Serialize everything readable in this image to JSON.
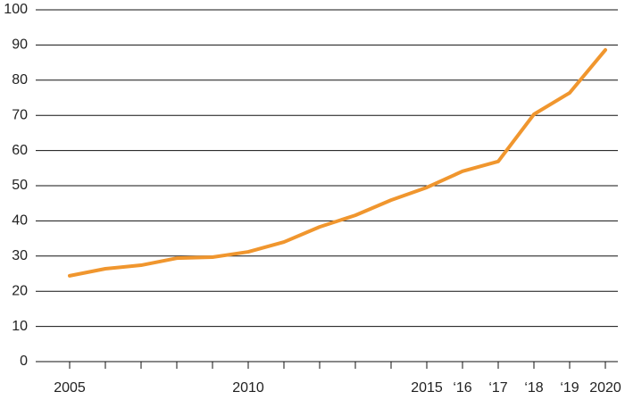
{
  "chart_data": {
    "type": "line",
    "categories": [
      "2005",
      null,
      null,
      null,
      null,
      "2010",
      null,
      null,
      null,
      null,
      "2015",
      "‘16",
      "‘17",
      "‘18",
      "‘19",
      "2020"
    ],
    "values": [
      24.4,
      26.4,
      27.4,
      29.4,
      29.7,
      31.2,
      34,
      38.3,
      41.6,
      45.9,
      49.5,
      54.1,
      56.9,
      70.3,
      76.4,
      88.6
    ],
    "color": "#f0962e",
    "ylim": [
      0,
      100
    ],
    "yticks": [
      0,
      10,
      20,
      30,
      40,
      50,
      60,
      70,
      80,
      90,
      100
    ],
    "grid": true
  }
}
